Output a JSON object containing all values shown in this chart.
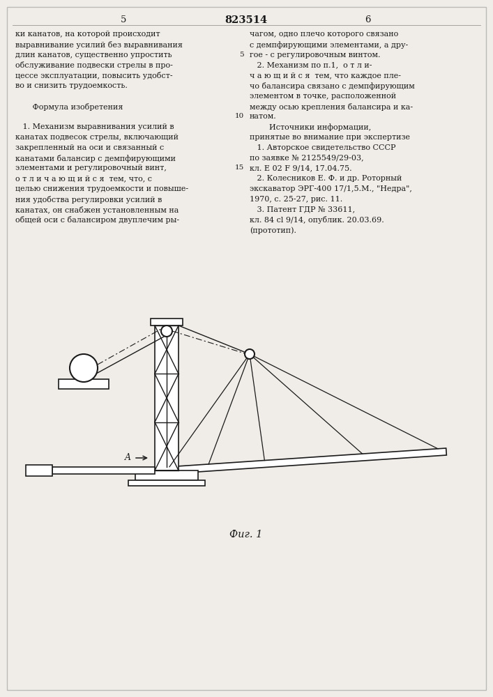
{
  "patent_number": "823514",
  "page_left": "5",
  "page_right": "6",
  "col_left_text": [
    "ки канатов, на которой происходит",
    "выравнивание усилий без выравнивания",
    "длин канатов, существенно упростить",
    "обслуживание подвески стрелы в про-",
    "цессе эксплуатации, повысить удобст-",
    "во и снизить трудоемкость.",
    "",
    "       Формула изобретения",
    "",
    "   1. Механизм выравнивания усилий в",
    "канатах подвесок стрелы, включающий",
    "закрепленный на оси и связанный с",
    "канатами балансир с демпфирующими",
    "элементами и регулировочный винт,",
    "о т л и ч а ю щ и й с я  тем, что, с",
    "целью снижения трудоемкости и повыше-",
    "ния удобства регулировки усилий в",
    "канатах, он снабжен установленным на",
    "общей оси с балансиром двуплечим ры-"
  ],
  "col_right_text": [
    "чагом, одно плечо которого связано",
    "с демпфирующими элементами, а дру-",
    "гое - с регулировочным винтом.",
    "   2. Механизм по п.1,  о т л и-",
    "ч а ю щ и й с я  тем, что каждое пле-",
    "чо балансира связано с демпфирующим",
    "элементом в точке, расположенной",
    "между осью крепления балансира и ка-",
    "натом.",
    "        Источники информации,",
    "принятые во внимание при экспертизе",
    "   1. Авторское свидетельство СССР",
    "по заявке № 2125549/29-03,",
    "кл. Е 02 F 9/14, 17.04.75.",
    "   2. Колесников Е. Ф. и др. Роторный",
    "экскаватор ЭРГ-400 17/1,5.М., \"Недра\",",
    "1970, с. 25-27, рис. 11.",
    "   3. Патент ГДР № 33611,",
    "кл. 84 cl 9/14, опублик. 20.03.69.",
    "(прототип)."
  ],
  "caption": "Фиг. 1",
  "bg_color": "#f0ede8",
  "text_color": "#1a1a1a",
  "line_color": "#1a1a1a"
}
